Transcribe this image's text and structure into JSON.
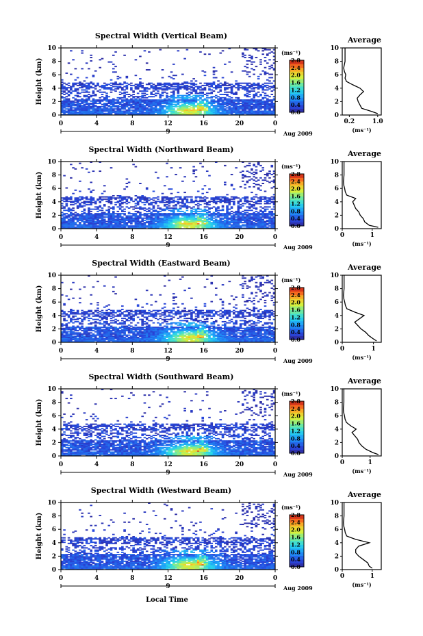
{
  "figure": {
    "bottom_xlabel": "Local Time",
    "date_label": "Aug 2009",
    "day_label": "9"
  },
  "chart_data": [
    {
      "type": "heatmap",
      "title": "Spectral Width (Vertical Beam)",
      "xlabel": "",
      "ylabel": "Height (km)",
      "xlim": [
        0,
        24
      ],
      "ylim": [
        0,
        10
      ],
      "xticks": [
        "0",
        "4",
        "8",
        "12",
        "16",
        "20",
        "0"
      ],
      "yticks": [
        "0",
        "2",
        "4",
        "6",
        "8",
        "10"
      ],
      "colorbar": {
        "unit": "(ms⁻¹)",
        "range": [
          0.0,
          2.8
        ],
        "ticks": [
          "0.0",
          "0.4",
          "0.8",
          "1.2",
          "1.6",
          "2.0",
          "2.4",
          "2.8"
        ]
      },
      "profile": {
        "title": "Average",
        "xlabel": "(ms⁻¹)",
        "xlim": [
          0.0,
          1.1
        ],
        "ylim": [
          0,
          10
        ],
        "xticks": [
          "0.2",
          "1.0"
        ],
        "xtick_values": [
          0.2,
          1.0
        ],
        "yticks": [
          "0",
          "2",
          "4",
          "6",
          "8",
          "10"
        ],
        "height": [
          0.2,
          0.5,
          1.0,
          1.5,
          2.0,
          2.5,
          3.0,
          3.5,
          4.0,
          4.5,
          5.0,
          5.5,
          6.0,
          6.5,
          7.0,
          8.0,
          9.0,
          10.0
        ],
        "value": [
          1.0,
          0.85,
          0.55,
          0.5,
          0.45,
          0.42,
          0.5,
          0.6,
          0.5,
          0.3,
          0.12,
          0.08,
          0.1,
          0.06,
          0.04,
          0.08,
          0.08,
          0.08
        ]
      }
    },
    {
      "type": "heatmap",
      "title": "Spectral Width (Northward Beam)",
      "xlabel": "",
      "ylabel": "Height (km)",
      "xlim": [
        0,
        24
      ],
      "ylim": [
        0,
        10
      ],
      "xticks": [
        "0",
        "4",
        "8",
        "12",
        "16",
        "20",
        "0"
      ],
      "yticks": [
        "0",
        "2",
        "4",
        "6",
        "8",
        "10"
      ],
      "colorbar": {
        "unit": "(ms⁻¹)",
        "range": [
          0.0,
          2.8
        ],
        "ticks": [
          "0.0",
          "0.4",
          "0.8",
          "1.2",
          "1.6",
          "2.0",
          "2.4",
          "2.8"
        ]
      },
      "profile": {
        "title": "Average",
        "xlabel": "(ms⁻¹)",
        "xlim": [
          0.0,
          1.3
        ],
        "ylim": [
          0,
          10
        ],
        "xticks": [
          "0",
          "1"
        ],
        "xtick_values": [
          0,
          1
        ],
        "yticks": [
          "0",
          "2",
          "4",
          "6",
          "8",
          "10"
        ],
        "height": [
          0.2,
          0.5,
          1.0,
          1.5,
          2.0,
          2.5,
          3.0,
          3.5,
          4.0,
          4.5,
          5.0,
          5.5,
          6.0,
          6.5,
          7.0,
          8.0,
          9.0,
          10.0
        ],
        "value": [
          1.2,
          0.9,
          0.75,
          0.7,
          0.6,
          0.55,
          0.45,
          0.4,
          0.35,
          0.45,
          0.15,
          0.1,
          0.08,
          0.05,
          0.04,
          0.06,
          0.06,
          0.06
        ]
      }
    },
    {
      "type": "heatmap",
      "title": "Spectral Width (Eastward Beam)",
      "xlabel": "",
      "ylabel": "Height (km)",
      "xlim": [
        0,
        24
      ],
      "ylim": [
        0,
        10
      ],
      "xticks": [
        "0",
        "4",
        "8",
        "12",
        "16",
        "20",
        "0"
      ],
      "yticks": [
        "0",
        "2",
        "4",
        "6",
        "8",
        "10"
      ],
      "colorbar": {
        "unit": "(ms⁻¹)",
        "range": [
          0.0,
          2.8
        ],
        "ticks": [
          "0.0",
          "0.4",
          "0.8",
          "1.2",
          "1.6",
          "2.0",
          "2.4",
          "2.8"
        ]
      },
      "profile": {
        "title": "Average",
        "xlabel": "(ms⁻¹)",
        "xlim": [
          0.0,
          1.25
        ],
        "ylim": [
          0,
          10
        ],
        "xticks": [
          "0",
          "1"
        ],
        "xtick_values": [
          0,
          1
        ],
        "yticks": [
          "0",
          "2",
          "4",
          "6",
          "8",
          "10"
        ],
        "height": [
          0.2,
          0.5,
          1.0,
          1.5,
          2.0,
          2.5,
          3.0,
          3.5,
          4.0,
          4.5,
          5.0,
          5.5,
          6.0,
          6.5,
          7.0,
          8.0,
          9.0,
          10.0
        ],
        "value": [
          1.1,
          1.0,
          0.85,
          0.75,
          0.6,
          0.5,
          0.4,
          0.55,
          0.7,
          0.4,
          0.15,
          0.1,
          0.08,
          0.05,
          0.04,
          0.06,
          0.06,
          0.06
        ]
      }
    },
    {
      "type": "heatmap",
      "title": "Spectral Width (Southward Beam)",
      "xlabel": "",
      "ylabel": "Height (km)",
      "xlim": [
        0,
        24
      ],
      "ylim": [
        0,
        10
      ],
      "xticks": [
        "0",
        "4",
        "8",
        "12",
        "16",
        "20",
        "0"
      ],
      "yticks": [
        "0",
        "2",
        "4",
        "6",
        "8",
        "10"
      ],
      "colorbar": {
        "unit": "(ms⁻¹)",
        "range": [
          0.0,
          2.8
        ],
        "ticks": [
          "0.0",
          "0.4",
          "0.8",
          "1.2",
          "1.6",
          "2.0",
          "2.4",
          "2.8"
        ]
      },
      "profile": {
        "title": "Average",
        "xlabel": "(ms⁻¹)",
        "xlim": [
          0.0,
          1.4
        ],
        "ylim": [
          0,
          10
        ],
        "xticks": [
          "0",
          "1"
        ],
        "xtick_values": [
          0,
          1
        ],
        "yticks": [
          "0",
          "2",
          "4",
          "6",
          "8",
          "10"
        ],
        "height": [
          0.2,
          0.5,
          1.0,
          1.5,
          2.0,
          2.5,
          3.0,
          3.5,
          4.0,
          4.5,
          5.0,
          5.5,
          6.0,
          6.5,
          7.0,
          8.0,
          9.0,
          10.0
        ],
        "value": [
          1.3,
          1.1,
          0.85,
          0.7,
          0.6,
          0.55,
          0.45,
          0.35,
          0.5,
          0.3,
          0.15,
          0.1,
          0.08,
          0.05,
          0.04,
          0.06,
          0.06,
          0.06
        ]
      }
    },
    {
      "type": "heatmap",
      "title": "Spectral Width (Westward Beam)",
      "xlabel": "Local Time",
      "ylabel": "Height (km)",
      "xlim": [
        0,
        24
      ],
      "ylim": [
        0,
        10
      ],
      "xticks": [
        "0",
        "4",
        "8",
        "12",
        "16",
        "20",
        "0"
      ],
      "yticks": [
        "0",
        "2",
        "4",
        "6",
        "8",
        "10"
      ],
      "colorbar": {
        "unit": "(ms⁻¹)",
        "range": [
          0.0,
          2.8
        ],
        "ticks": [
          "0.0",
          "0.4",
          "0.8",
          "1.2",
          "1.6",
          "2.0",
          "2.4",
          "2.8"
        ]
      },
      "profile": {
        "title": "Average",
        "xlabel": "(ms⁻¹)",
        "xlim": [
          0.0,
          1.3
        ],
        "ylim": [
          0,
          10
        ],
        "xticks": [
          "0",
          "1"
        ],
        "xtick_values": [
          0,
          1
        ],
        "yticks": [
          "0",
          "2",
          "4",
          "6",
          "8",
          "10"
        ],
        "height": [
          0.2,
          0.5,
          1.0,
          1.5,
          2.0,
          2.5,
          3.0,
          3.5,
          4.0,
          4.5,
          5.0,
          5.5,
          6.0,
          6.5,
          7.0,
          8.0,
          9.0,
          10.0
        ],
        "value": [
          1.0,
          0.9,
          0.85,
          0.7,
          0.55,
          0.45,
          0.45,
          0.55,
          0.9,
          0.45,
          0.15,
          0.1,
          0.08,
          0.05,
          0.04,
          0.06,
          0.06,
          0.06
        ]
      }
    }
  ]
}
